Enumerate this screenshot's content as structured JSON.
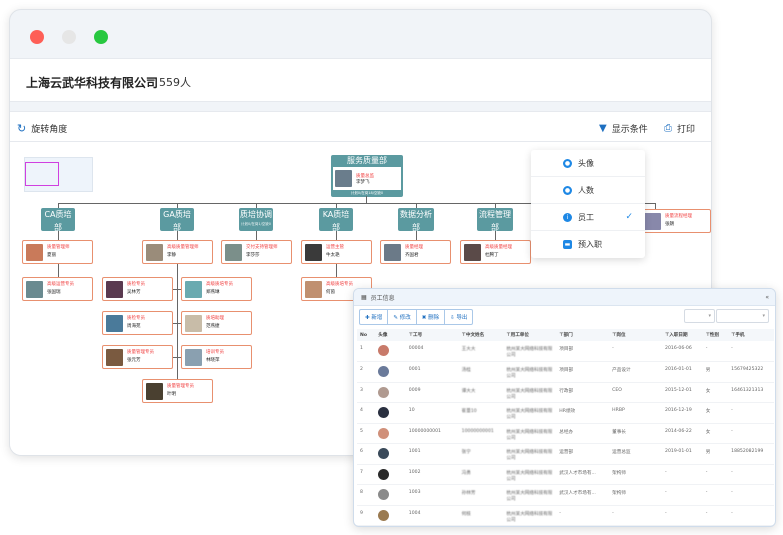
{
  "window": {
    "traffic_lights": [
      "#fe5f57",
      "#e6e6e6",
      "#28c840"
    ]
  },
  "header": {
    "company": "上海云武华科技有限公司",
    "headcount": "559人"
  },
  "toolbar": {
    "rotate_label": "旋转角度",
    "filter_label": "显示条件",
    "print_label": "打印"
  },
  "org": {
    "root": {
      "dept": "服务质量部",
      "title": "质量总监",
      "name": "李梦飞",
      "stats": "计划0/在岗18/空缺0"
    },
    "depts": [
      {
        "name": "CA质培部",
        "stats": "计划0/在岗6/空缺0"
      },
      {
        "name": "GA质培部",
        "stats": "计划0/在岗8/空缺0"
      },
      {
        "name": "质培协调",
        "stats": "计划0/在岗1/空缺0"
      },
      {
        "name": "KA质培部",
        "stats": "计划0/在岗2/空缺0"
      },
      {
        "name": "数据分析部",
        "stats": "计划0/在岗1/空缺0"
      },
      {
        "name": "流程管理部",
        "stats": "计划0/在岗1/空缺0"
      }
    ],
    "people": [
      {
        "title": "质量管理师",
        "name": "夏丽"
      },
      {
        "title": "高级质量管理师",
        "name": "李静"
      },
      {
        "title": "交付支持管理师",
        "name": "李莎莎"
      },
      {
        "title": "运营主管",
        "name": "牛太艳"
      },
      {
        "title": "质量经理",
        "name": "齐国君"
      },
      {
        "title": "高级质量经理",
        "name": "杜腾丁"
      },
      {
        "title": "质量流程经理",
        "name": "张朗"
      },
      {
        "title": "高级运营专员",
        "name": "张国瑞"
      },
      {
        "title": "质检专员",
        "name": "吴林芳"
      },
      {
        "title": "高级质培专员",
        "name": "郑燕琳"
      },
      {
        "title": "质检专员",
        "name": "周海苑"
      },
      {
        "title": "质培助理",
        "name": "范燕捷"
      },
      {
        "title": "质量管理专员",
        "name": "张元芳"
      },
      {
        "title": "培训专员",
        "name": "林晓萍"
      },
      {
        "title": "质量管理专员",
        "name": "叶明"
      },
      {
        "title": "高级质培专员",
        "name": "何茵"
      }
    ]
  },
  "display_menu": {
    "items": [
      {
        "label": "头像",
        "icon": "user-icon"
      },
      {
        "label": "人数",
        "icon": "users-icon"
      },
      {
        "label": "员工",
        "icon": "info-icon",
        "checked": true
      },
      {
        "label": "预入职",
        "icon": "badge-icon"
      }
    ]
  },
  "employee_window": {
    "title": "员工信息",
    "collapse": "«",
    "buttons": [
      "✚ 新增",
      "✎ 修改",
      "✖ 删除",
      "⇩ 导出"
    ],
    "columns": [
      "No",
      "头像",
      "工号",
      "中文姓名",
      "用工单位",
      "部门",
      "岗位",
      "入职日期",
      "性别",
      "手机"
    ],
    "rows": [
      [
        "1",
        "",
        "00004",
        "王大大",
        "杭州某大网络科技有限公司",
        "项目部",
        "-",
        "2016-06-06",
        "-",
        "-"
      ],
      [
        "2",
        "",
        "0001",
        "汤桂",
        "杭州某大网络科技有限公司",
        "项目部",
        "产品设计",
        "2016-01-01",
        "男",
        "15679425322"
      ],
      [
        "3",
        "",
        "0009",
        "谭大大",
        "杭州某大网络科技有限公司",
        "行政部",
        "CEO",
        "2015-12-01",
        "女",
        "16461321313"
      ],
      [
        "4",
        "",
        "10",
        "崔量10",
        "杭州某大网络科技有限公司",
        "HR绩效",
        "HRBP",
        "2016-12-19",
        "女",
        "-"
      ],
      [
        "5",
        "",
        "10000000001",
        "10000000001",
        "杭州某大网络科技有限公司",
        "总经办",
        "董事长",
        "2014-06-22",
        "女",
        "-"
      ],
      [
        "6",
        "",
        "1001",
        "张宁",
        "杭州某大网络科技有限公司",
        "运营部",
        "运营总监",
        "2019-01-01",
        "男",
        "18852082199"
      ],
      [
        "7",
        "",
        "1002",
        "冯勇",
        "杭州某大网络科技有限公司",
        "武汉人才市场有...",
        "架构师",
        "-",
        "-",
        "-"
      ],
      [
        "8",
        "",
        "1003",
        "孙林芳",
        "杭州某大网络科技有限公司",
        "武汉人才市场有...",
        "架构师",
        "-",
        "-",
        "-"
      ],
      [
        "9",
        "",
        "1004",
        "何枝",
        "杭州某大网络科技有限公司",
        "-",
        "-",
        "-",
        "-",
        "-"
      ]
    ]
  }
}
